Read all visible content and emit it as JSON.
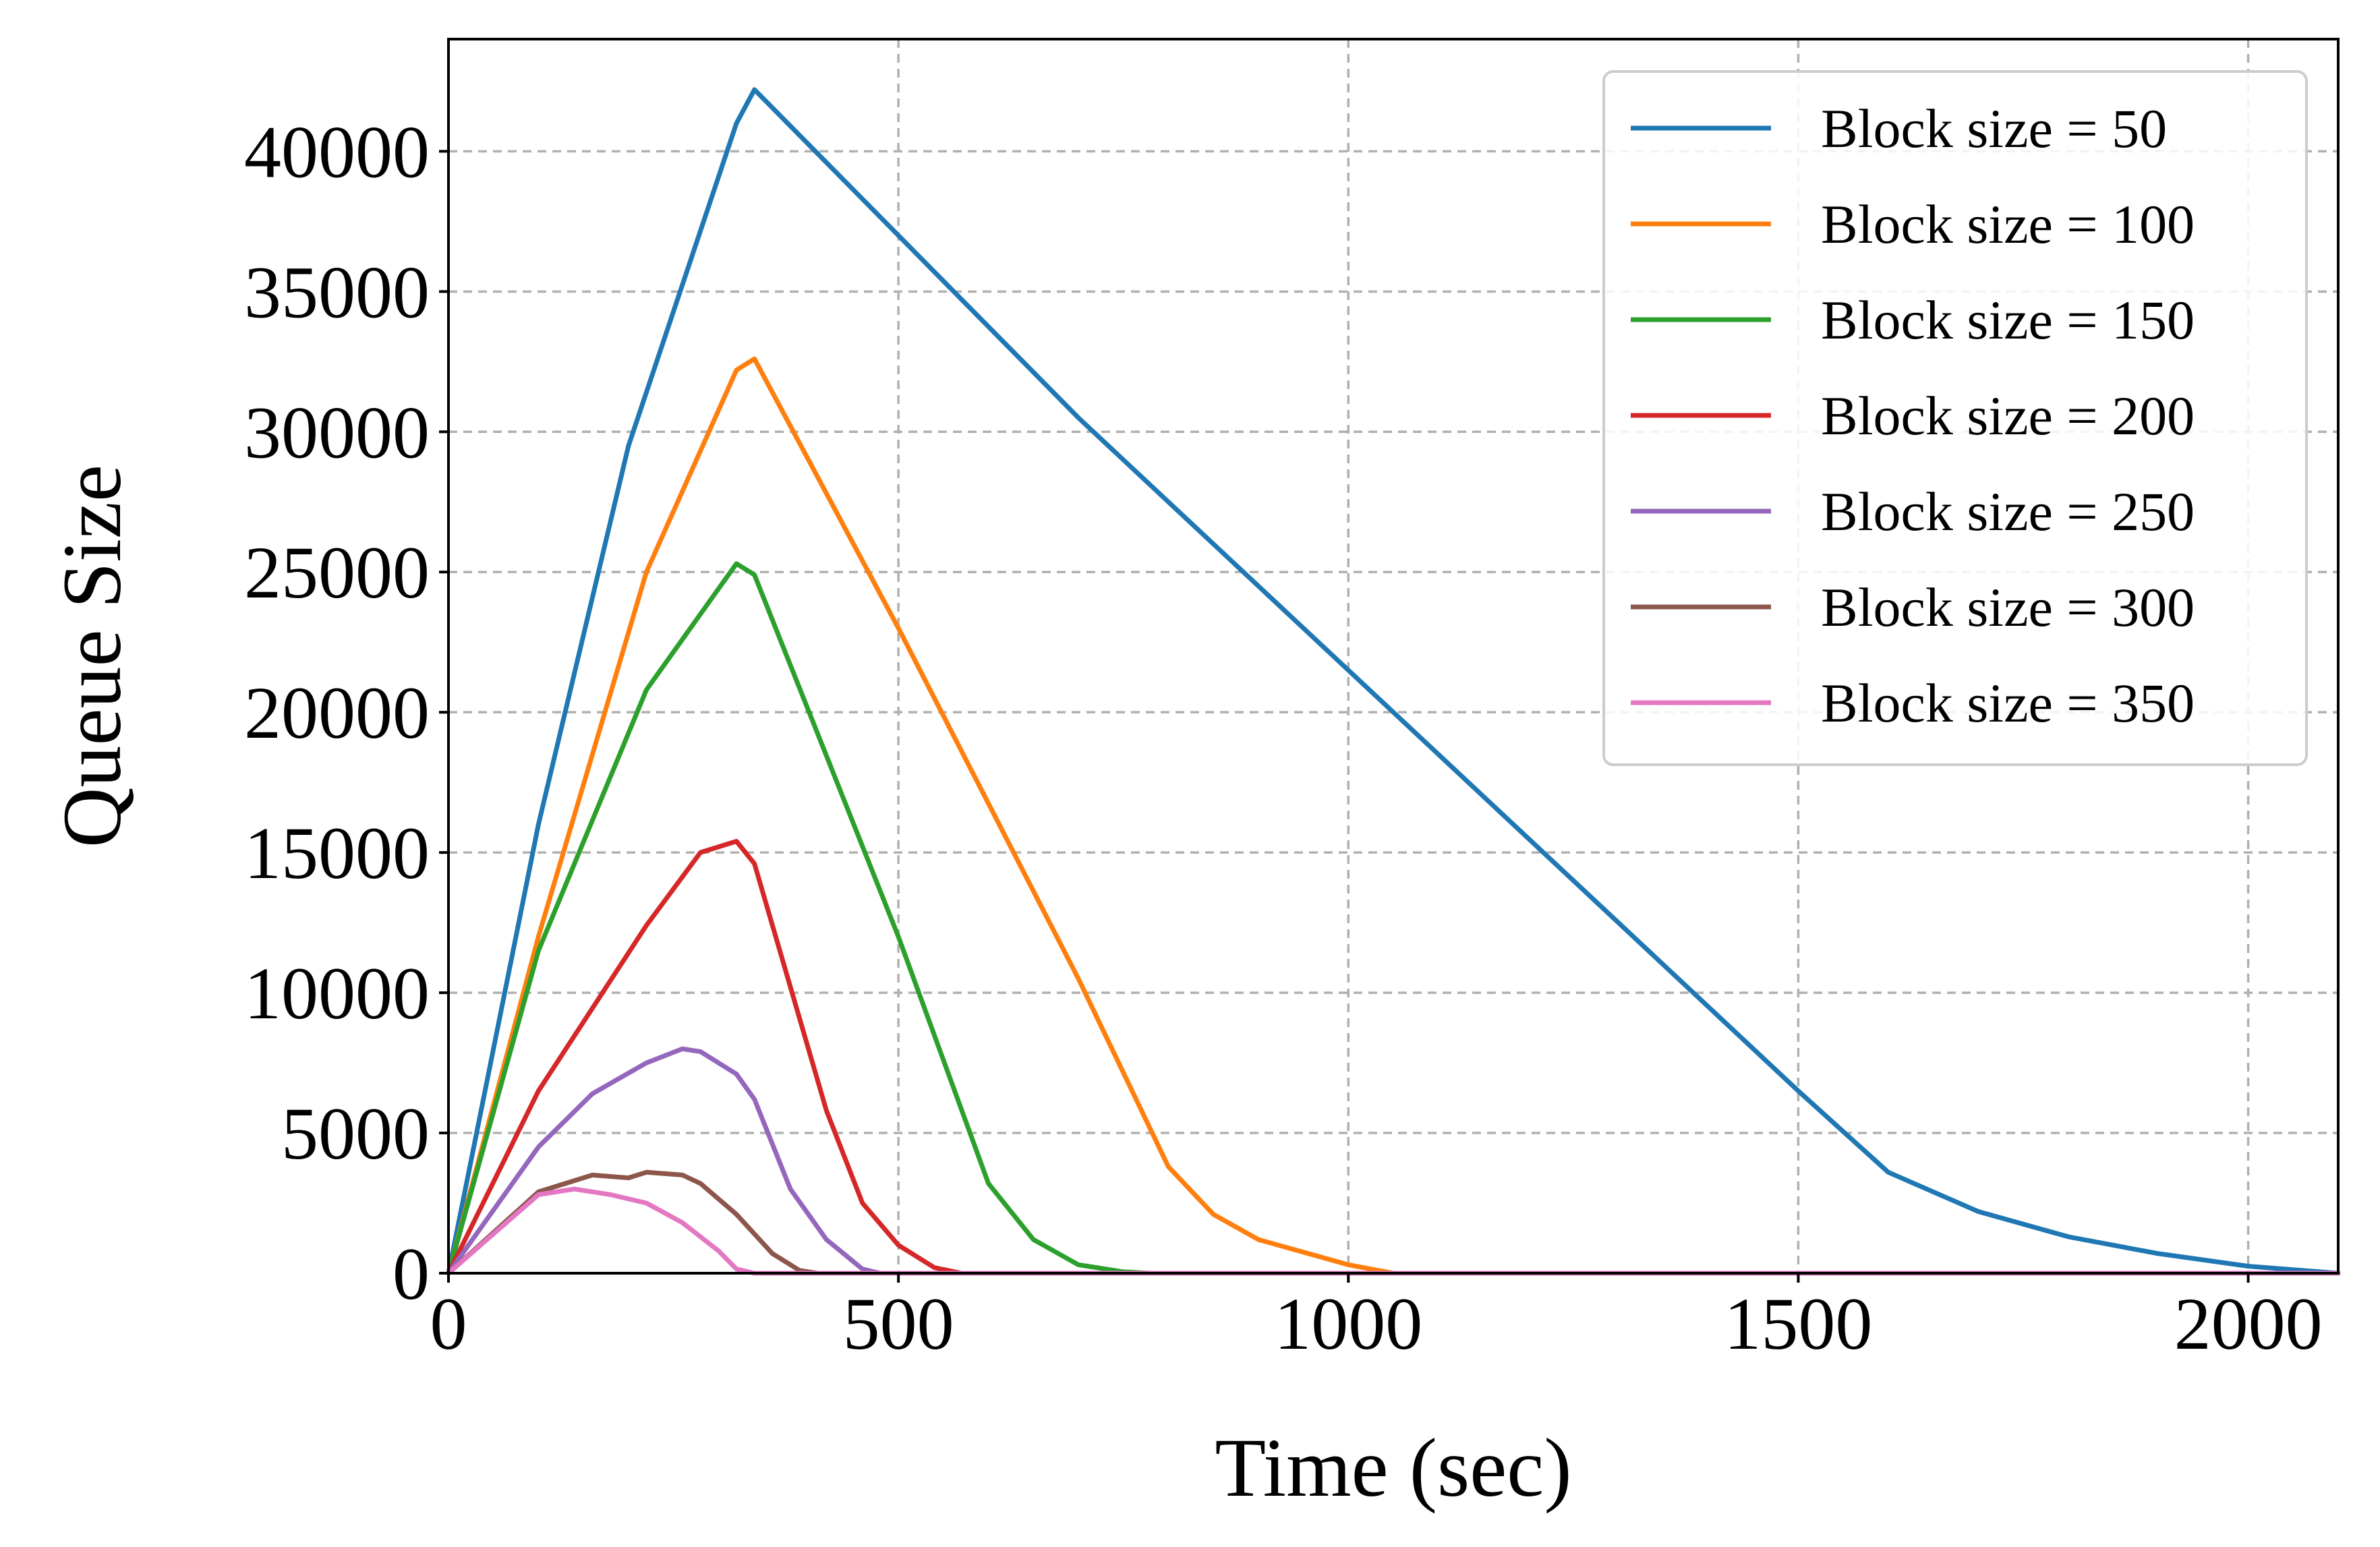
{
  "chart_data": {
    "type": "line",
    "xlabel": "Time (sec)",
    "ylabel": "Queue Size",
    "xlim": [
      0,
      2100
    ],
    "ylim": [
      0,
      44000
    ],
    "xticks": [
      "0",
      "500",
      "1000",
      "1500",
      "2000"
    ],
    "xtick_values": [
      0,
      500,
      1000,
      1500,
      2000
    ],
    "yticks": [
      "0",
      "5000",
      "10000",
      "15000",
      "20000",
      "25000",
      "30000",
      "35000",
      "40000"
    ],
    "ytick_values": [
      0,
      5000,
      10000,
      15000,
      20000,
      25000,
      30000,
      35000,
      40000
    ],
    "grid": true,
    "legend_position": "top-right",
    "series": [
      {
        "name": "Block size = 50",
        "color": "#1f77b4",
        "x": [
          0,
          100,
          200,
          320,
          340,
          500,
          700,
          1000,
          1300,
          1500,
          1600,
          1700,
          1800,
          1900,
          2000,
          2100
        ],
        "y": [
          0,
          16000,
          29500,
          41000,
          42200,
          37000,
          30500,
          21500,
          12500,
          6500,
          3600,
          2200,
          1300,
          700,
          250,
          0
        ]
      },
      {
        "name": "Block size = 100",
        "color": "#ff7f0e",
        "x": [
          0,
          100,
          220,
          320,
          340,
          500,
          700,
          800,
          850,
          900,
          1000,
          1050,
          2100
        ],
        "y": [
          0,
          12000,
          25000,
          32200,
          32600,
          23000,
          10500,
          3800,
          2100,
          1200,
          300,
          0,
          0
        ],
        "note": ""
      },
      {
        "name": "Block size = 150",
        "color": "#2ca02c",
        "x": [
          0,
          100,
          220,
          320,
          340,
          500,
          600,
          650,
          700,
          750,
          780,
          2100
        ],
        "y": [
          0,
          11500,
          20800,
          25300,
          24900,
          12000,
          3200,
          1200,
          300,
          50,
          0,
          0
        ]
      },
      {
        "name": "Block size = 200",
        "color": "#d62728",
        "x": [
          0,
          100,
          220,
          280,
          320,
          340,
          420,
          460,
          500,
          540,
          570,
          2100
        ],
        "y": [
          0,
          6500,
          12400,
          15000,
          15400,
          14600,
          5800,
          2500,
          1000,
          200,
          0,
          0
        ]
      },
      {
        "name": "Block size = 250",
        "color": "#9467bd",
        "x": [
          0,
          100,
          160,
          220,
          260,
          280,
          320,
          340,
          380,
          420,
          460,
          480,
          2100
        ],
        "y": [
          0,
          4500,
          6400,
          7500,
          8000,
          7900,
          7100,
          6200,
          3000,
          1200,
          150,
          0,
          0
        ]
      },
      {
        "name": "Block size = 300",
        "color": "#8c564b",
        "x": [
          0,
          100,
          160,
          200,
          220,
          260,
          280,
          320,
          360,
          390,
          410,
          2100
        ],
        "y": [
          0,
          2900,
          3500,
          3400,
          3600,
          3500,
          3200,
          2100,
          700,
          100,
          0,
          0
        ]
      },
      {
        "name": "Block size = 350",
        "color": "#e377c2",
        "x": [
          0,
          100,
          140,
          180,
          220,
          260,
          300,
          320,
          340,
          2100
        ],
        "y": [
          0,
          2800,
          3000,
          2800,
          2500,
          1800,
          800,
          150,
          0,
          0
        ]
      }
    ]
  }
}
